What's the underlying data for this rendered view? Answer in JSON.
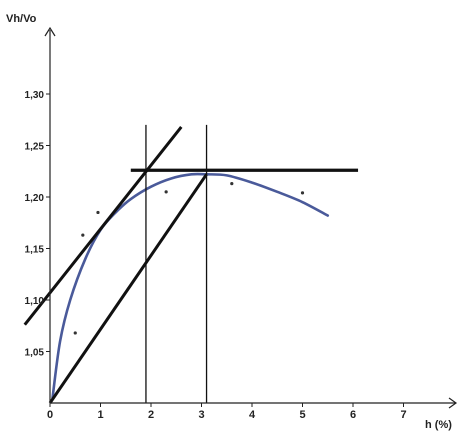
{
  "chart_data": {
    "type": "scatter",
    "title": "",
    "xlabel": "h (%)",
    "ylabel": "Vh/Vo",
    "xlim": [
      0,
      7.6
    ],
    "ylim": [
      1.0,
      1.36
    ],
    "x_ticks": [
      0,
      1,
      2,
      3,
      4,
      5,
      6,
      7
    ],
    "x_tick_labels": [
      "0",
      "1",
      "2",
      "3",
      "4",
      "5",
      "6",
      "7"
    ],
    "y_ticks": [
      1.05,
      1.1,
      1.15,
      1.2,
      1.25,
      1.3
    ],
    "y_tick_labels": [
      "1,05",
      "1,10",
      "1,15",
      "1,20",
      "1,25",
      "1,30"
    ],
    "grid": false,
    "legend": "none",
    "series": [
      {
        "kind": "points",
        "color": "#333333",
        "x": [
          0.5,
          0.65,
          0.95,
          2.3,
          3.6,
          5.0
        ],
        "y": [
          1.068,
          1.163,
          1.185,
          1.205,
          1.213,
          1.204
        ]
      },
      {
        "kind": "fitted-curve",
        "color": "#4a5a9a",
        "x": [
          0.05,
          0.2,
          0.4,
          0.7,
          1.0,
          1.3,
          1.6,
          2.0,
          2.4,
          2.8,
          3.1,
          3.5,
          4.0,
          4.5,
          5.0,
          5.5
        ],
        "y": [
          1.005,
          1.06,
          1.1,
          1.14,
          1.168,
          1.185,
          1.198,
          1.21,
          1.218,
          1.222,
          1.222,
          1.221,
          1.214,
          1.205,
          1.195,
          1.182
        ]
      },
      {
        "kind": "tangent-line",
        "color": "#111111",
        "x": [
          -0.5,
          2.6
        ],
        "y": [
          1.076,
          1.268
        ]
      },
      {
        "kind": "line-from-origin",
        "color": "#111111",
        "x": [
          0.0,
          3.1
        ],
        "y": [
          1.0,
          1.222
        ]
      },
      {
        "kind": "horizontal-line",
        "color": "#111111",
        "x": [
          1.6,
          6.1
        ],
        "y": [
          1.226,
          1.226
        ]
      },
      {
        "kind": "vertical-line",
        "color": "#111111",
        "x": [
          1.9,
          1.9
        ],
        "y": [
          1.0,
          1.27
        ]
      },
      {
        "kind": "vertical-line",
        "color": "#111111",
        "x": [
          3.1,
          3.1
        ],
        "y": [
          1.0,
          1.27
        ]
      }
    ]
  }
}
